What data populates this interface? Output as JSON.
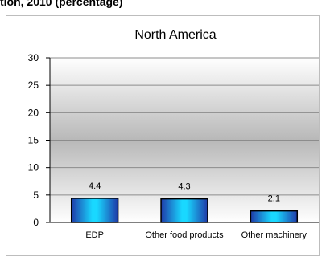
{
  "header": {
    "text": "tion, 2010  (percentage)"
  },
  "chart_data": {
    "type": "bar",
    "title": "North America",
    "categories": [
      "EDP",
      "Other food products",
      "Other machinery"
    ],
    "values": [
      4.4,
      4.3,
      2.1
    ],
    "value_labels": [
      "4.4",
      "4.3",
      "2.1"
    ],
    "xlabel": "",
    "ylabel": "",
    "ylim": [
      0,
      30
    ],
    "yticks": [
      "0",
      "5",
      "10",
      "15",
      "20",
      "25",
      "30"
    ],
    "grid": true,
    "legend": "none",
    "colors": {
      "bar_center": "#19d8ff",
      "bar_edge": "#1f3aa8",
      "bar_stroke": "#000000",
      "plot_top": "#ffffff",
      "plot_mid": "#b8b8b8",
      "gridline": "#8c8c8c"
    }
  }
}
